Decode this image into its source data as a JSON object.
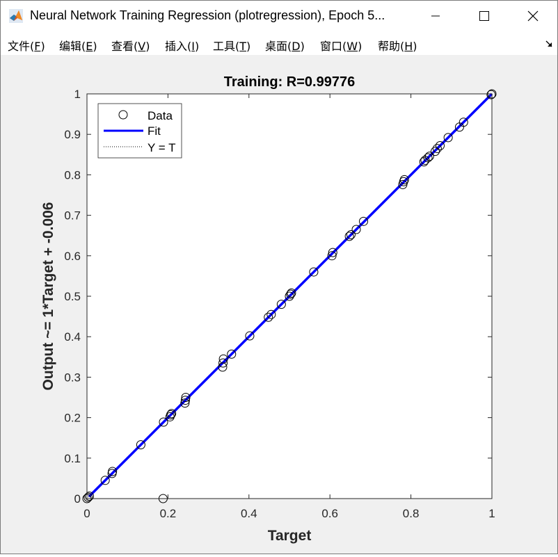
{
  "window": {
    "title": "Neural Network Training Regression (plotregression), Epoch 5...",
    "controls": {
      "minimize": "minimize-icon",
      "maximize": "maximize-icon",
      "close": "close-icon"
    }
  },
  "menu": [
    {
      "label": "文件(",
      "key": "F",
      "tail": ")"
    },
    {
      "label": "编辑(",
      "key": "E",
      "tail": ")"
    },
    {
      "label": "查看(",
      "key": "V",
      "tail": ")"
    },
    {
      "label": "插入(",
      "key": "I",
      "tail": ")"
    },
    {
      "label": "工具(",
      "key": "T",
      "tail": ")"
    },
    {
      "label": "桌面(",
      "key": "D",
      "tail": ")"
    },
    {
      "label": "窗口(",
      "key": "W",
      "tail": ")"
    },
    {
      "label": "帮助(",
      "key": "H",
      "tail": ")"
    }
  ],
  "chart_data": {
    "type": "scatter",
    "title": "Training: R=0.99776",
    "xlabel": "Target",
    "ylabel": "Output ~= 1*Target + -0.006",
    "xlim": [
      0,
      1
    ],
    "ylim": [
      0,
      1
    ],
    "xticks": [
      "0",
      "0.2",
      "0.4",
      "0.6",
      "0.8",
      "1"
    ],
    "yticks": [
      "0",
      "0.1",
      "0.2",
      "0.3",
      "0.4",
      "0.5",
      "0.6",
      "0.7",
      "0.8",
      "0.9",
      "1"
    ],
    "grid": false,
    "legend": {
      "placement": "top-left",
      "entries": [
        {
          "name": "Data",
          "marker": "open-circle",
          "color": "#000000"
        },
        {
          "name": "Fit",
          "line": "solid",
          "color": "#0000ff"
        },
        {
          "name": "Y = T",
          "line": "dotted",
          "color": "#000000"
        }
      ]
    },
    "fit": {
      "slope": 1,
      "intercept": -0.006,
      "color": "#0000ff"
    },
    "reference_line": {
      "name": "Y = T",
      "slope": 1,
      "intercept": 0
    },
    "series": [
      {
        "name": "Data",
        "points": [
          [
            0.0,
            0.0
          ],
          [
            0.003,
            0.003
          ],
          [
            0.006,
            0.006
          ],
          [
            0.045,
            0.045
          ],
          [
            0.062,
            0.062
          ],
          [
            0.063,
            0.067
          ],
          [
            0.133,
            0.133
          ],
          [
            0.188,
            0.0
          ],
          [
            0.189,
            0.189
          ],
          [
            0.205,
            0.202
          ],
          [
            0.207,
            0.207
          ],
          [
            0.209,
            0.21
          ],
          [
            0.242,
            0.236
          ],
          [
            0.243,
            0.243
          ],
          [
            0.244,
            0.25
          ],
          [
            0.335,
            0.325
          ],
          [
            0.336,
            0.335
          ],
          [
            0.337,
            0.345
          ],
          [
            0.357,
            0.357
          ],
          [
            0.402,
            0.402
          ],
          [
            0.448,
            0.448
          ],
          [
            0.455,
            0.455
          ],
          [
            0.48,
            0.48
          ],
          [
            0.5,
            0.5
          ],
          [
            0.503,
            0.505
          ],
          [
            0.505,
            0.508
          ],
          [
            0.56,
            0.56
          ],
          [
            0.605,
            0.6
          ],
          [
            0.607,
            0.608
          ],
          [
            0.648,
            0.648
          ],
          [
            0.652,
            0.652
          ],
          [
            0.665,
            0.665
          ],
          [
            0.683,
            0.685
          ],
          [
            0.78,
            0.776
          ],
          [
            0.782,
            0.783
          ],
          [
            0.784,
            0.788
          ],
          [
            0.832,
            0.832
          ],
          [
            0.835,
            0.836
          ],
          [
            0.842,
            0.842
          ],
          [
            0.846,
            0.846
          ],
          [
            0.86,
            0.858
          ],
          [
            0.865,
            0.865
          ],
          [
            0.872,
            0.872
          ],
          [
            0.892,
            0.892
          ],
          [
            0.92,
            0.918
          ],
          [
            0.93,
            0.93
          ],
          [
            0.998,
            0.998
          ],
          [
            1.0,
            1.0
          ]
        ]
      }
    ]
  }
}
